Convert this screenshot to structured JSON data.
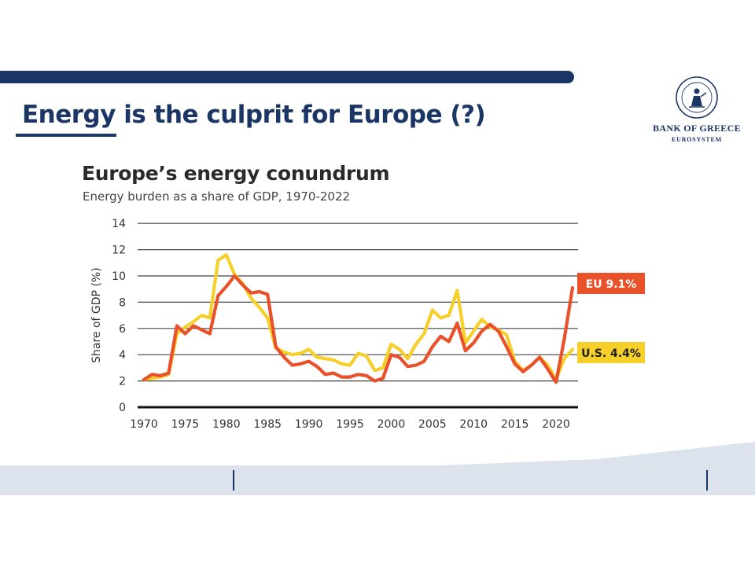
{
  "slide": {
    "title": "Energy is the culprit for Europe (?)"
  },
  "logo": {
    "name": "BANK OF GREECE",
    "subtitle": "EUROSYSTEM",
    "seal_color": "#1b3564"
  },
  "colors": {
    "brand": "#1b3564",
    "eu_series": "#e8512a",
    "us_series": "#f6cf2a",
    "footer_band": "#dde3ec"
  },
  "chart_data": {
    "type": "line",
    "title": "Europe’s energy conundrum",
    "subtitle": "Energy burden as a share of GDP, 1970-2022",
    "xlabel": "",
    "ylabel": "Share of GDP (%)",
    "xlim": [
      1970,
      2022
    ],
    "ylim": [
      0,
      14
    ],
    "x_ticks": [
      1970,
      1975,
      1980,
      1985,
      1990,
      1995,
      2000,
      2005,
      2010,
      2015,
      2020
    ],
    "y_ticks": [
      0,
      2,
      4,
      6,
      8,
      10,
      12,
      14
    ],
    "grid": "horizontal",
    "x": [
      1970,
      1971,
      1972,
      1973,
      1974,
      1975,
      1976,
      1977,
      1978,
      1979,
      1980,
      1981,
      1982,
      1983,
      1984,
      1985,
      1986,
      1987,
      1988,
      1989,
      1990,
      1991,
      1992,
      1993,
      1994,
      1995,
      1996,
      1997,
      1998,
      1999,
      2000,
      2001,
      2002,
      2003,
      2004,
      2005,
      2006,
      2007,
      2008,
      2009,
      2010,
      2011,
      2012,
      2013,
      2014,
      2015,
      2016,
      2017,
      2018,
      2019,
      2020,
      2021,
      2022
    ],
    "series": [
      {
        "name": "U.S.",
        "end_label": "U.S. 4.4%",
        "color": "#f6cf2a",
        "values": [
          2.1,
          2.2,
          2.3,
          2.5,
          5.6,
          6.1,
          6.5,
          7.0,
          6.8,
          11.2,
          11.6,
          10.1,
          9.4,
          8.3,
          7.6,
          6.8,
          4.5,
          4.2,
          4.0,
          4.1,
          4.4,
          3.8,
          3.7,
          3.6,
          3.3,
          3.2,
          4.1,
          3.9,
          2.8,
          3.0,
          4.8,
          4.4,
          3.7,
          4.8,
          5.6,
          7.4,
          6.8,
          7.0,
          8.9,
          4.9,
          5.8,
          6.7,
          6.1,
          5.9,
          5.5,
          3.5,
          2.8,
          3.2,
          3.8,
          3.2,
          2.1,
          3.7,
          4.4
        ]
      },
      {
        "name": "EU",
        "end_label": "EU 9.1%",
        "color": "#e8512a",
        "values": [
          2.1,
          2.5,
          2.4,
          2.6,
          6.2,
          5.6,
          6.2,
          5.9,
          5.6,
          8.5,
          9.2,
          10.0,
          9.3,
          8.7,
          8.8,
          8.6,
          4.6,
          3.8,
          3.2,
          3.3,
          3.5,
          3.1,
          2.5,
          2.6,
          2.3,
          2.3,
          2.5,
          2.4,
          2.0,
          2.2,
          4.0,
          3.8,
          3.1,
          3.2,
          3.5,
          4.6,
          5.4,
          5.0,
          6.4,
          4.3,
          4.9,
          5.8,
          6.3,
          5.8,
          4.6,
          3.3,
          2.7,
          3.2,
          3.8,
          2.9,
          1.9,
          5.2,
          9.1
        ]
      }
    ]
  }
}
